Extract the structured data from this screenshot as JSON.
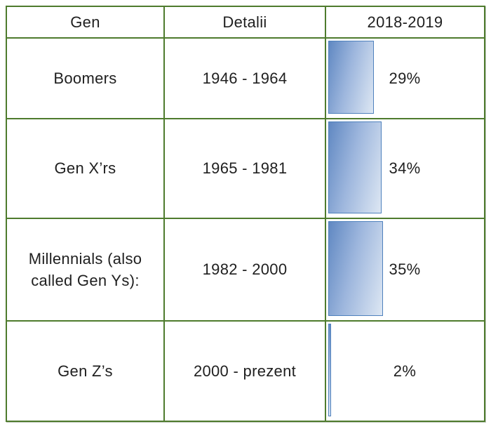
{
  "table": {
    "headers": {
      "gen": "Gen",
      "detalii": "Detalii",
      "period": "2018-2019"
    },
    "rows": [
      {
        "gen": "Boomers",
        "detalii": "1946 - 1964",
        "value_label": "29%"
      },
      {
        "gen": "Gen X’rs",
        "detalii": "1965 - 1981",
        "value_label": "34%"
      },
      {
        "gen": "Millennials (also called Gen Ys):",
        "detalii": "1982 - 2000",
        "value_label": "35%"
      },
      {
        "gen": "Gen Z’s",
        "detalii": "2000 - prezent",
        "value_label": "2%"
      }
    ]
  },
  "chart_data": {
    "type": "bar",
    "orientation": "horizontal",
    "title": "2018-2019",
    "categories": [
      "Boomers",
      "Gen X’rs",
      "Millennials (also called Gen Ys):",
      "Gen Z’s"
    ],
    "values": [
      29,
      34,
      35,
      2
    ],
    "data_labels": [
      "29%",
      "34%",
      "35%",
      "2%"
    ],
    "unit": "%",
    "xlim": [
      0,
      100
    ],
    "grid": false,
    "legend": "none"
  },
  "colors": {
    "grid_green": "#4e7b2d",
    "bar_border": "#4f81bd",
    "bar_fill_dark": "#6088c2",
    "bar_fill_light": "#dde7f3",
    "text": "#1f1f1f"
  }
}
